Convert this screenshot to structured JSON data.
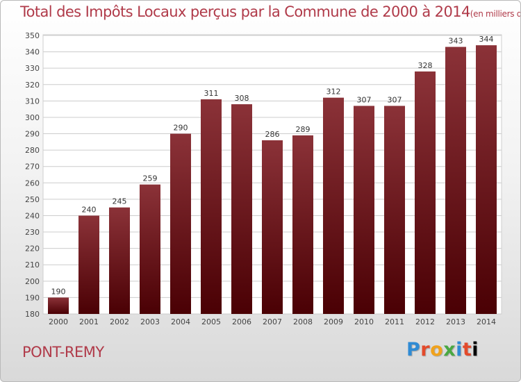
{
  "header": {
    "title": "Total des Impôts Locaux perçus par la Commune de 2000 à 2014",
    "unit": "(en milliers d'€)"
  },
  "footer": {
    "commune": "PONT-REMY",
    "logo": [
      "P",
      "r",
      "o",
      "x",
      "i",
      "t",
      "i"
    ]
  },
  "colors": {
    "bar_top": "#8b3238",
    "bar_bottom": "#4a0004",
    "title": "#b03a49",
    "grid": "#cccccc"
  },
  "chart_data": {
    "type": "bar",
    "title": "Total des Impôts Locaux perçus par la Commune de 2000 à 2014",
    "ylabel": "en milliers d'€",
    "categories": [
      "2000",
      "2001",
      "2002",
      "2003",
      "2004",
      "2005",
      "2006",
      "2007",
      "2008",
      "2009",
      "2010",
      "2011",
      "2012",
      "2013",
      "2014"
    ],
    "values": [
      190,
      240,
      245,
      259,
      290,
      311,
      308,
      286,
      289,
      312,
      307,
      307,
      328,
      343,
      344
    ],
    "ylim": [
      180,
      350
    ],
    "yticks": [
      180,
      190,
      200,
      210,
      220,
      230,
      240,
      250,
      260,
      270,
      280,
      290,
      300,
      310,
      320,
      330,
      340,
      350
    ],
    "grid": true
  }
}
